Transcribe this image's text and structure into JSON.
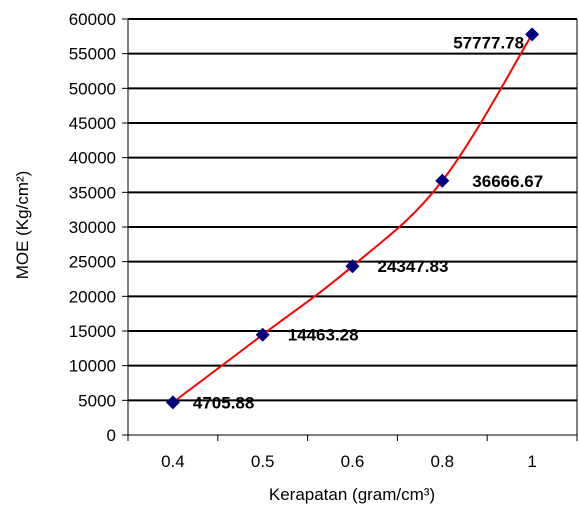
{
  "chart_data": {
    "type": "line",
    "categories": [
      "0.4",
      "0.5",
      "0.6",
      "0.8",
      "1"
    ],
    "series": [
      {
        "values": [
          4705.88,
          14463.28,
          24347.83,
          36666.67,
          57777.78
        ],
        "labels": [
          "4705.88",
          "14463.28",
          "24347.83",
          "36666.67",
          "57777.78"
        ]
      }
    ],
    "xlabel": "Kerapatan (gram/cm³)",
    "ylabel": "MOE (Kg/cm²)",
    "ylim": [
      0,
      60000
    ],
    "yticks": [
      "0",
      "5000",
      "10000",
      "15000",
      "20000",
      "25000",
      "30000",
      "35000",
      "40000",
      "45000",
      "50000",
      "55000",
      "60000"
    ],
    "grid": "horizontal",
    "line_color": "#ff0000",
    "marker_color": "#000080",
    "marker": "diamond",
    "legend": "none"
  }
}
